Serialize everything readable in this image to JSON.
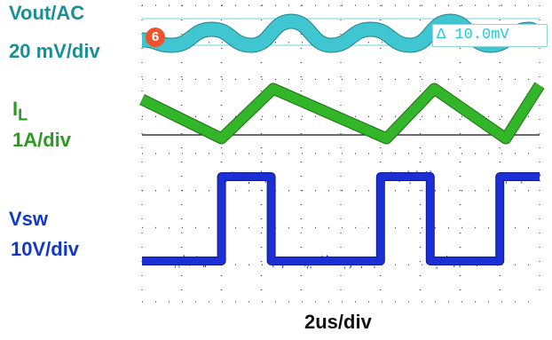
{
  "chart_data": {
    "type": "line",
    "title": "",
    "xlabel": "2us/div",
    "x_unit": "us",
    "x_per_div": 2,
    "x_divisions": 10,
    "x_range_us": [
      0,
      20
    ],
    "grid": "dotted",
    "cursor_label": "Δ 10.0mV",
    "channel_marker": "6",
    "series": [
      {
        "name": "Vout/AC",
        "scale": "20 mV/div",
        "unit": "mV",
        "color": "#3fc6d0",
        "t_us": [
          0,
          1.5,
          3.5,
          5.5,
          7.5,
          9.5,
          11.5,
          13.5,
          15.5,
          17.5,
          19.5,
          20
        ],
        "values": [
          -3,
          -5,
          1,
          -5,
          4,
          -5,
          1,
          -5,
          4,
          -5,
          1,
          -1
        ]
      },
      {
        "name": "IL",
        "scale": "1A/div",
        "unit": "A",
        "color": "#33b52a",
        "t_us": [
          0,
          4,
          6.6,
          12.3,
          14.7,
          18.3,
          20
        ],
        "values": [
          1.0,
          -0.1,
          1.3,
          -0.1,
          1.3,
          -0.1,
          1.4
        ]
      },
      {
        "name": "Vsw",
        "scale": "10V/div",
        "unit": "V",
        "color": "#1b2fd4",
        "t_us": [
          0,
          4,
          4,
          6.5,
          6.5,
          12,
          12,
          14.5,
          14.5,
          18,
          18,
          20
        ],
        "values": [
          0,
          0,
          20,
          20,
          0,
          0,
          20,
          20,
          0,
          0,
          20,
          20
        ]
      }
    ]
  },
  "labels": {
    "vout_name": "Vout/AC",
    "vout_scale": "20 mV/div",
    "il_name": "I",
    "il_sub": "L",
    "il_scale": "1A/div",
    "vsw_name": "Vsw",
    "vsw_scale": "10V/div",
    "time_scale": "2us/div",
    "delta": "Δ 10.0mV",
    "marker": "6"
  },
  "colors": {
    "vout": "#3fc6d0",
    "il": "#33b52a",
    "vsw": "#1b2fd4",
    "grid": "#444444",
    "marker": "#f0522b"
  }
}
